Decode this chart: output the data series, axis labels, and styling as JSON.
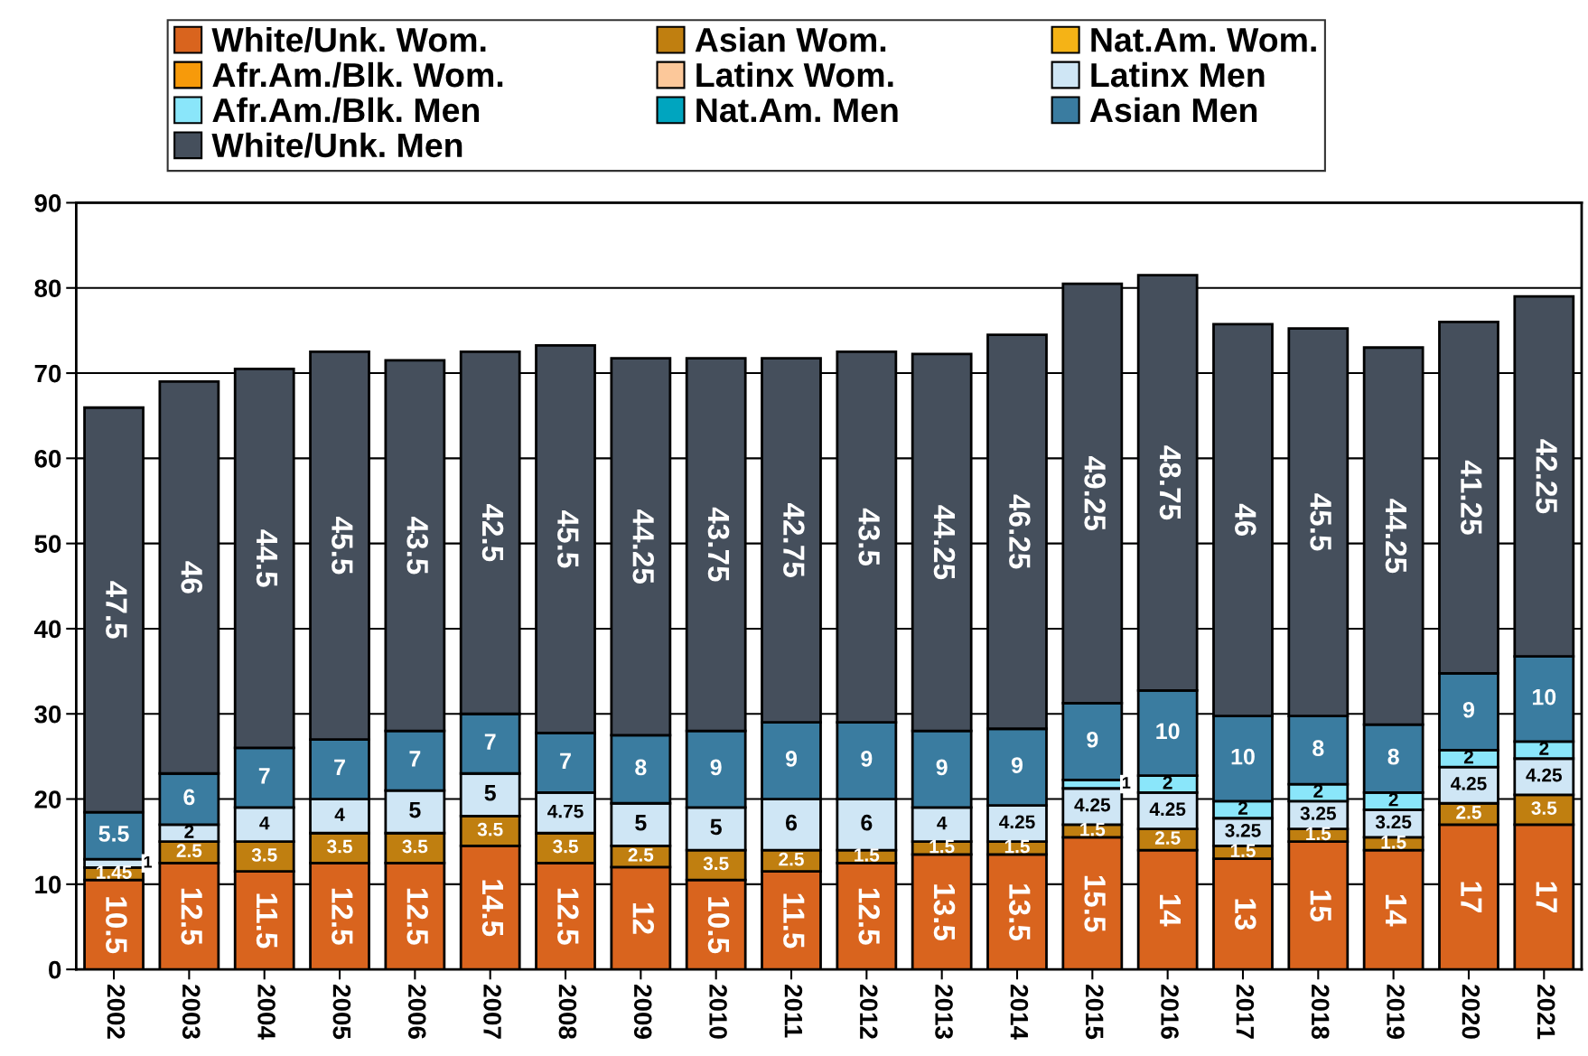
{
  "chart_data": {
    "type": "bar",
    "stacked": true,
    "data_labels": true,
    "grid": "y",
    "legend": "top",
    "categories": [
      "2002",
      "2003",
      "2004",
      "2005",
      "2006",
      "2007",
      "2008",
      "2009",
      "2010",
      "2011",
      "2012",
      "2013",
      "2014",
      "2015",
      "2016",
      "2017",
      "2018",
      "2019",
      "2020",
      "2021"
    ],
    "ylim": [
      0,
      90
    ],
    "yticks": [
      0,
      10,
      20,
      30,
      40,
      50,
      60,
      70,
      80,
      90
    ],
    "series": [
      {
        "name": "White/Unk. Wom.",
        "color": "#d9641e",
        "values": [
          10.5,
          12.5,
          11.5,
          12.5,
          12.5,
          14.5,
          12.5,
          12,
          10.5,
          11.5,
          12.5,
          13.5,
          13.5,
          15.5,
          14,
          13,
          15,
          14,
          17,
          17
        ]
      },
      {
        "name": "Asian Wom.",
        "color": "#c07f10",
        "values": [
          1.45,
          2.5,
          3.5,
          3.5,
          3.5,
          3.5,
          3.5,
          2.5,
          3.5,
          2.5,
          1.5,
          1.5,
          1.5,
          1.5,
          2.5,
          1.5,
          1.5,
          1.5,
          2.5,
          3.5
        ]
      },
      {
        "name": "Nat.Am. Wom.",
        "color": "#f5b316",
        "values": [
          null,
          null,
          null,
          null,
          null,
          null,
          null,
          null,
          null,
          null,
          null,
          null,
          null,
          null,
          null,
          null,
          null,
          null,
          null,
          null
        ]
      },
      {
        "name": "Afr.Am./Blk. Wom.",
        "color": "#f79a0a",
        "values": [
          null,
          null,
          null,
          null,
          null,
          null,
          null,
          null,
          null,
          null,
          null,
          null,
          null,
          null,
          null,
          null,
          null,
          null,
          null,
          null
        ]
      },
      {
        "name": "Latinx Wom.",
        "color": "#fcc89a",
        "values": [
          null,
          null,
          null,
          null,
          null,
          null,
          null,
          null,
          null,
          null,
          null,
          null,
          null,
          null,
          null,
          null,
          null,
          null,
          null,
          null
        ]
      },
      {
        "name": "Latinx Men",
        "color": "#cfe6f5",
        "values": [
          1,
          2,
          4,
          4,
          5,
          5,
          4.75,
          5,
          5,
          6,
          6,
          4,
          4.25,
          4.25,
          4.25,
          3.25,
          3.25,
          3.25,
          4.25,
          4.25
        ]
      },
      {
        "name": "Afr.Am./Blk. Men",
        "color": "#8ae6fa",
        "values": [
          null,
          null,
          null,
          null,
          null,
          null,
          null,
          null,
          null,
          null,
          null,
          null,
          null,
          1,
          2,
          2,
          2,
          2,
          2,
          2
        ]
      },
      {
        "name": "Nat.Am. Men",
        "color": "#00a5bf",
        "values": [
          null,
          null,
          null,
          null,
          null,
          null,
          null,
          null,
          null,
          null,
          null,
          null,
          null,
          null,
          null,
          null,
          null,
          null,
          null,
          null
        ]
      },
      {
        "name": "Asian Men",
        "color": "#3a7ca0",
        "values": [
          5.5,
          6,
          7,
          7,
          7,
          7,
          7,
          8,
          9,
          9,
          9,
          9,
          9,
          9,
          10,
          10,
          8,
          8,
          9,
          10
        ]
      },
      {
        "name": "White/Unk. Men",
        "color": "#454f5c",
        "values": [
          47.5,
          46,
          44.5,
          45.5,
          43.5,
          42.5,
          45.5,
          44.25,
          43.75,
          42.75,
          43.5,
          44.25,
          46.25,
          49.25,
          48.75,
          46,
          45.5,
          44.25,
          41.25,
          42.25
        ]
      }
    ]
  }
}
